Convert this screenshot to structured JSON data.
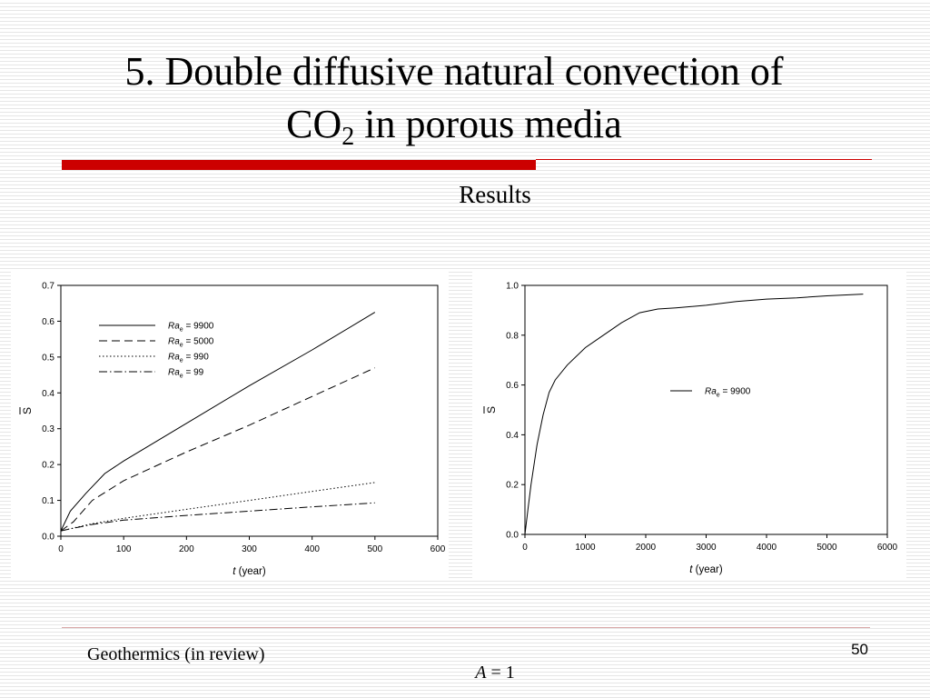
{
  "slide": {
    "title_line1": "5. Double diffusive natural convection of",
    "title_line2_pre": "CO",
    "title_line2_sub": "2",
    "title_line2_post": " in porous media",
    "subtitle": "Results",
    "footer_reference": "Geothermics (in review)",
    "page_number": "50",
    "footer_param_var": "A",
    "footer_param_rest": " = 1",
    "accent_color": "#cc0000"
  },
  "chart_data": [
    {
      "type": "line",
      "xlabel_var": "t",
      "xlabel_rest": " (year)",
      "ylabel": "S",
      "xlim": [
        0,
        600
      ],
      "ylim": [
        0,
        0.7
      ],
      "xticks": [
        0,
        100,
        200,
        300,
        400,
        500,
        600
      ],
      "yticks": [
        0.0,
        0.1,
        0.2,
        0.3,
        0.4,
        0.5,
        0.6,
        0.7
      ],
      "ytick_decimals": 1,
      "legend_position": "top-left",
      "series": [
        {
          "name_var": "Ra",
          "name_sub": "e",
          "name_rest": " = 9900",
          "dash": "solid",
          "x": [
            0,
            15,
            40,
            70,
            100,
            200,
            300,
            400,
            500
          ],
          "y": [
            0.015,
            0.07,
            0.12,
            0.175,
            0.21,
            0.315,
            0.42,
            0.52,
            0.625
          ]
        },
        {
          "name_var": "Ra",
          "name_sub": "e",
          "name_rest": " = 5000",
          "dash": "dash",
          "x": [
            0,
            20,
            50,
            100,
            200,
            300,
            400,
            500
          ],
          "y": [
            0.015,
            0.04,
            0.1,
            0.155,
            0.235,
            0.31,
            0.39,
            0.47
          ]
        },
        {
          "name_var": "Ra",
          "name_sub": "e",
          "name_rest": " = 990",
          "dash": "dot",
          "x": [
            0,
            50,
            100,
            200,
            300,
            400,
            500
          ],
          "y": [
            0.015,
            0.035,
            0.05,
            0.075,
            0.1,
            0.125,
            0.15
          ]
        },
        {
          "name_var": "Ra",
          "name_sub": "e",
          "name_rest": " = 99",
          "dash": "dashdot",
          "x": [
            0,
            50,
            100,
            200,
            300,
            400,
            500
          ],
          "y": [
            0.015,
            0.033,
            0.045,
            0.058,
            0.07,
            0.082,
            0.093
          ]
        }
      ]
    },
    {
      "type": "line",
      "xlabel_var": "t",
      "xlabel_rest": " (year)",
      "ylabel": "S",
      "xlim": [
        0,
        6000
      ],
      "ylim": [
        0,
        1.0
      ],
      "xticks": [
        0,
        1000,
        2000,
        3000,
        4000,
        5000,
        6000
      ],
      "yticks": [
        0.0,
        0.2,
        0.4,
        0.6,
        0.8,
        1.0
      ],
      "ytick_decimals": 1,
      "legend_position": "center",
      "series": [
        {
          "name_var": "Ra",
          "name_sub": "e",
          "name_rest": " = 9900",
          "dash": "solid",
          "x": [
            0,
            50,
            100,
            200,
            300,
            400,
            500,
            700,
            1000,
            1300,
            1600,
            1900,
            2200,
            2500,
            3000,
            3500,
            4000,
            4500,
            5000,
            5600
          ],
          "y": [
            0.0,
            0.1,
            0.2,
            0.36,
            0.48,
            0.57,
            0.62,
            0.68,
            0.75,
            0.8,
            0.85,
            0.89,
            0.905,
            0.91,
            0.92,
            0.935,
            0.945,
            0.95,
            0.958,
            0.965
          ]
        }
      ]
    }
  ]
}
